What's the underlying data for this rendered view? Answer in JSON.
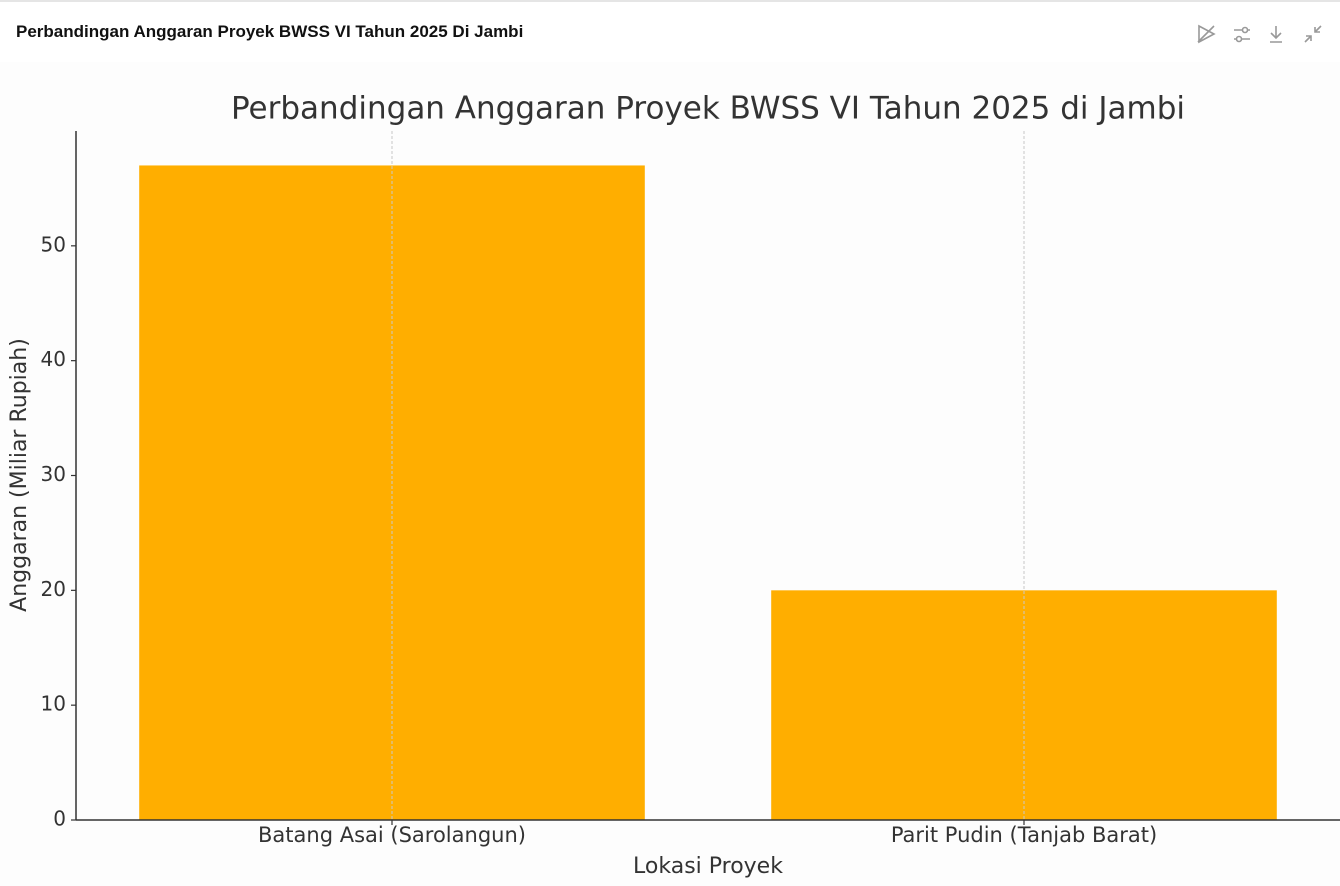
{
  "header": {
    "title": "Perbandingan Anggaran Proyek BWSS VI Tahun 2025 Di Jambi"
  },
  "chart_data": {
    "type": "bar",
    "title": "Perbandingan Anggaran Proyek BWSS VI Tahun 2025 di Jambi",
    "x_label": "Lokasi Proyek",
    "y_label": "Anggaran (Miliar Rupiah)",
    "categories": [
      "Batang Asai (Sarolangun)",
      "Parit Pudin (Tanjab Barat)"
    ],
    "values": [
      57,
      20
    ],
    "color": "#ffae00",
    "ylim": [
      0,
      60
    ],
    "yticks": [
      0,
      10,
      20,
      30,
      40,
      50
    ],
    "grid": "x"
  }
}
